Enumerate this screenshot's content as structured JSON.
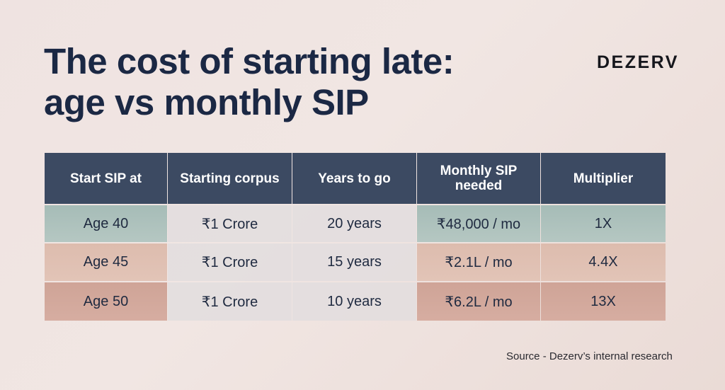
{
  "title": {
    "line1": "The cost of starting late:",
    "line2": "age vs monthly SIP"
  },
  "brand": {
    "logo_text": "DEZERV"
  },
  "table": {
    "headers": [
      "Start SIP at",
      "Starting corpus",
      "Years to go",
      "Monthly SIP needed",
      "Multiplier"
    ],
    "rows": [
      [
        "Age 40",
        "₹1 Crore",
        "20 years",
        "₹48,000 / mo",
        "1X"
      ],
      [
        "Age 45",
        "₹1 Crore",
        "15 years",
        "₹2.1L / mo",
        "4.4X"
      ],
      [
        "Age 50",
        "₹1 Crore",
        "10 years",
        "₹6.2L / mo",
        "13X"
      ]
    ]
  },
  "footer": {
    "source": "Source - Dezerv’s internal research"
  },
  "colors": {
    "header_bg": "#3c4a62",
    "row_age40": "#aec1bc",
    "row_age45": "#e0c0b2",
    "row_age50": "#d2a89b",
    "title": "#1b2844"
  }
}
